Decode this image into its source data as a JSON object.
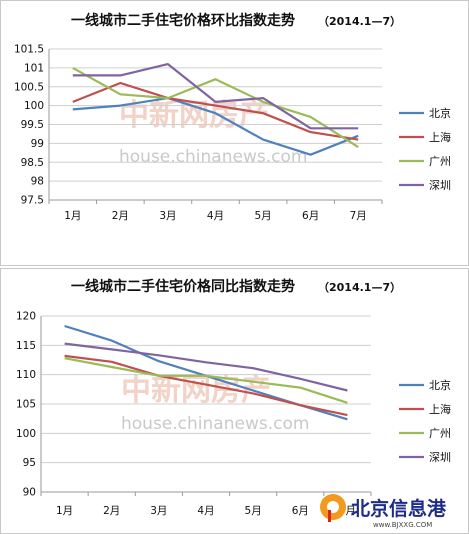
{
  "chart_data": [
    {
      "type": "line",
      "title": "一线城市二手住宅价格环比指数走势",
      "title_suffix": "（2014.1—7）",
      "categories": [
        "1月",
        "2月",
        "3月",
        "4月",
        "5月",
        "6月",
        "7月"
      ],
      "ylim": [
        97.5,
        101.5
      ],
      "yticks": [
        "97.5",
        "98",
        "98.5",
        "99",
        "99.5",
        "100",
        "100.5",
        "101",
        "101.5"
      ],
      "grid": true,
      "legend_position": "right",
      "series": [
        {
          "name": "北京",
          "color": "#4f81bd",
          "values": [
            99.9,
            100.0,
            100.2,
            99.8,
            99.1,
            98.7,
            99.2
          ]
        },
        {
          "name": "上海",
          "color": "#c0504d",
          "values": [
            100.1,
            100.6,
            100.2,
            100.0,
            99.8,
            99.3,
            99.1
          ]
        },
        {
          "name": "广州",
          "color": "#9bbb59",
          "values": [
            101.0,
            100.3,
            100.2,
            100.7,
            100.1,
            99.7,
            98.9
          ]
        },
        {
          "name": "深圳",
          "color": "#8064a2",
          "values": [
            100.8,
            100.8,
            101.1,
            100.1,
            100.2,
            99.4,
            99.4
          ]
        }
      ]
    },
    {
      "type": "line",
      "title": "一线城市二手住宅价格同比指数走势",
      "title_suffix": "（2014.1—7）",
      "categories": [
        "1月",
        "2月",
        "3月",
        "4月",
        "5月",
        "6月",
        "7月"
      ],
      "ylim": [
        90,
        120
      ],
      "yticks": [
        "90",
        "95",
        "100",
        "105",
        "110",
        "115",
        "120"
      ],
      "grid": true,
      "legend_position": "right",
      "series": [
        {
          "name": "北京",
          "color": "#4f81bd",
          "values": [
            118.3,
            115.8,
            112.3,
            109.8,
            107.3,
            104.8,
            102.4
          ]
        },
        {
          "name": "上海",
          "color": "#c0504d",
          "values": [
            113.2,
            112.2,
            109.8,
            108.3,
            106.8,
            104.8,
            103.1
          ]
        },
        {
          "name": "广州",
          "color": "#9bbb59",
          "values": [
            112.8,
            111.3,
            109.8,
            109.8,
            108.8,
            107.8,
            105.2
          ]
        },
        {
          "name": "深圳",
          "color": "#8064a2",
          "values": [
            115.3,
            114.3,
            113.3,
            112.1,
            111.1,
            109.3,
            107.3
          ]
        }
      ]
    }
  ],
  "watermark": {
    "text": "house.chinanews.com",
    "cn_text": "中新网房产"
  },
  "logo": {
    "text": "北京信息港",
    "url": "www.BJXXG.COM"
  }
}
